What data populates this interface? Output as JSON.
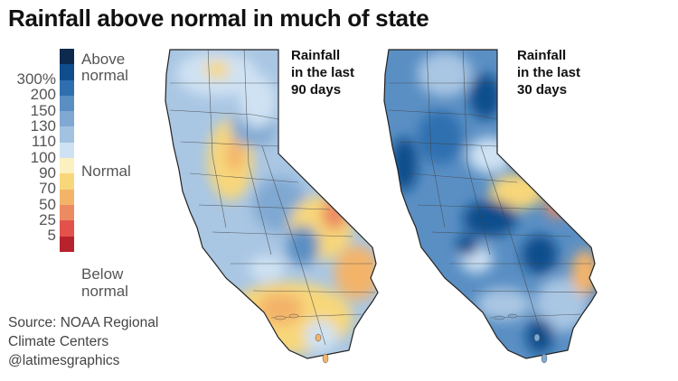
{
  "title": "Rainfall above normal in much of state",
  "legend": {
    "ticks": [
      "300%",
      "200",
      "150",
      "130",
      "110",
      "100",
      "90",
      "70",
      "50",
      "25",
      "5"
    ],
    "colors": [
      "#0d2a4e",
      "#0f4d8c",
      "#2f6fb0",
      "#5a8fc4",
      "#7fa8d2",
      "#a3c1e0",
      "#cfe2f3",
      "#fbf0c0",
      "#f8d77a",
      "#f3b46a",
      "#ec8a62",
      "#e2524a",
      "#b8222c"
    ],
    "above_label_1": "Above",
    "above_label_2": "normal",
    "normal_label": "Normal",
    "below_label_1": "Below",
    "below_label_2": "normal"
  },
  "source": {
    "line1": "Source: NOAA Regional",
    "line2": "Climate Centers",
    "line3": "@latimesgraphics"
  },
  "maps": [
    {
      "label_1": "Rainfall",
      "label_2": "in the last",
      "label_3": "90 days"
    },
    {
      "label_1": "Rainfall",
      "label_2": "in the last",
      "label_3": "30 days"
    }
  ]
}
